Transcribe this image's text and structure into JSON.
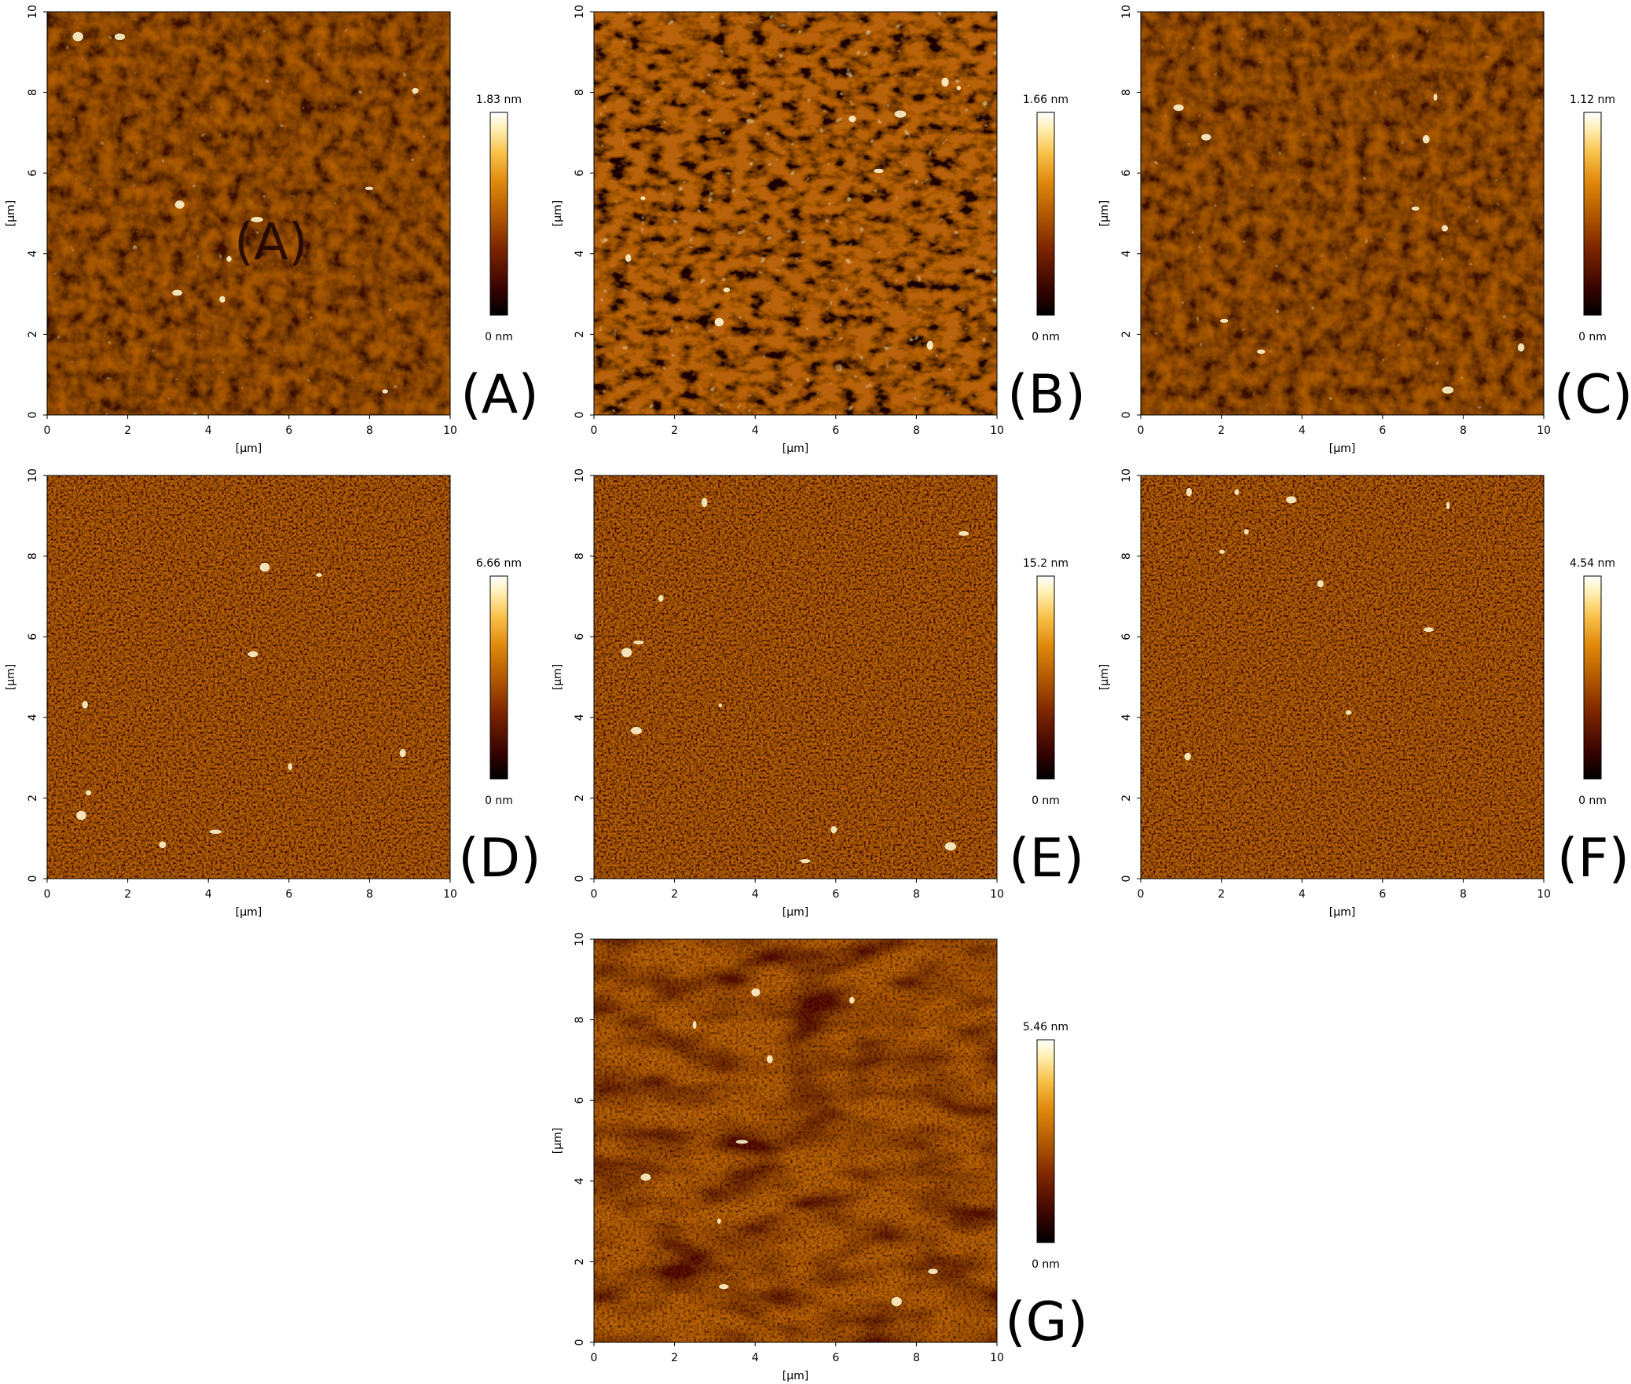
{
  "figure": {
    "axis": {
      "xlabel": "[µm]",
      "ylabel": "[µm]",
      "ticks": [
        "0",
        "2",
        "4",
        "6",
        "8",
        "10"
      ],
      "range": [
        0,
        10
      ]
    },
    "colormap": [
      "#000000",
      "#3a0500",
      "#7a2300",
      "#b35a00",
      "#e08a0d",
      "#f9c14a",
      "#fff0b4",
      "#ffffff"
    ],
    "panels": [
      {
        "label": "(A)",
        "scale_max": "1.83 nm",
        "scale_min": "0 nm",
        "texture": "grainy",
        "inner_label": "(A)"
      },
      {
        "label": "(B)",
        "scale_max": "1.66 nm",
        "scale_min": "0 nm",
        "texture": "worm"
      },
      {
        "label": "(C)",
        "scale_max": "1.12 nm",
        "scale_min": "0 nm",
        "texture": "grainy"
      },
      {
        "label": "(D)",
        "scale_max": "6.66 nm",
        "scale_min": "0 nm",
        "texture": "fine"
      },
      {
        "label": "(E)",
        "scale_max": "15.2 nm",
        "scale_min": "0 nm",
        "texture": "fine"
      },
      {
        "label": "(F)",
        "scale_max": "4.54 nm",
        "scale_min": "0 nm",
        "texture": "fine"
      },
      {
        "label": "(G)",
        "scale_max": "5.46 nm",
        "scale_min": "0 nm",
        "texture": "streaky"
      }
    ]
  }
}
